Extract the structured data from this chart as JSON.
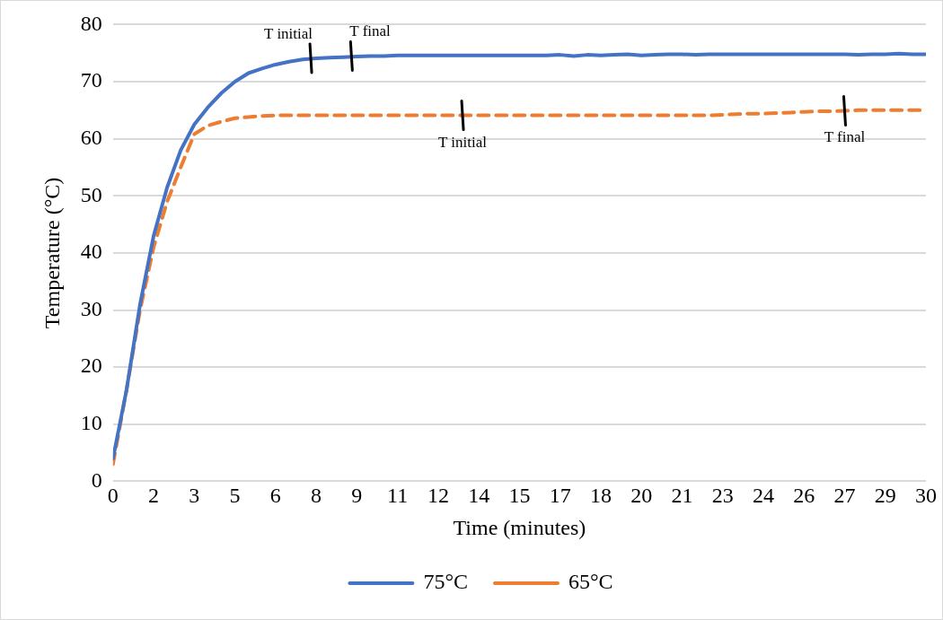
{
  "chart_data": {
    "type": "line",
    "xlabel": "Time (minutes)",
    "ylabel": "Temperature (°C)",
    "xlim": [
      0,
      30
    ],
    "xticks": [
      0,
      {
        "value": 1.5,
        "label": "2"
      },
      3,
      {
        "value": 4.5,
        "label": "5"
      },
      6,
      {
        "value": 7.5,
        "label": "8"
      },
      9,
      {
        "value": 10.5,
        "label": "11"
      },
      12,
      {
        "value": 13.5,
        "label": "14"
      },
      15,
      {
        "value": 16.5,
        "label": "17"
      },
      18,
      {
        "value": 19.5,
        "label": "20"
      },
      21,
      {
        "value": 22.5,
        "label": "23"
      },
      24,
      {
        "value": 25.5,
        "label": "26"
      },
      27,
      {
        "value": 28.5,
        "label": "29"
      },
      30
    ],
    "x": [
      0,
      0.5,
      1,
      1.5,
      2,
      2.5,
      3,
      3.5,
      4,
      4.5,
      5,
      5.5,
      6,
      6.5,
      7,
      7.5,
      8,
      8.5,
      9,
      9.5,
      10,
      10.5,
      11,
      11.5,
      12,
      12.5,
      13,
      13.5,
      14,
      14.5,
      15,
      15.5,
      16,
      16.5,
      17,
      17.5,
      18,
      18.5,
      19,
      19.5,
      20,
      20.5,
      21,
      21.5,
      22,
      22.5,
      23,
      23.5,
      24,
      24.5,
      25,
      25.5,
      26,
      26.5,
      27,
      27.5,
      28,
      28.5,
      29,
      29.5,
      30
    ],
    "ylim": [
      0,
      80
    ],
    "yticks": [
      0,
      10,
      20,
      30,
      40,
      50,
      60,
      70,
      80
    ],
    "grid": "y",
    "legend": "bottom",
    "series": [
      {
        "name": "75°C",
        "color": "#4472c4",
        "line_style": "solid",
        "values": [
          4,
          16,
          31,
          43,
          51.5,
          58,
          62.5,
          65.5,
          68,
          70,
          71.5,
          72.3,
          73,
          73.5,
          73.9,
          74.1,
          74.2,
          74.3,
          74.4,
          74.5,
          74.5,
          74.6,
          74.6,
          74.6,
          74.6,
          74.6,
          74.6,
          74.6,
          74.6,
          74.6,
          74.6,
          74.6,
          74.6,
          74.7,
          74.5,
          74.7,
          74.6,
          74.7,
          74.8,
          74.6,
          74.7,
          74.8,
          74.8,
          74.7,
          74.8,
          74.8,
          74.8,
          74.8,
          74.8,
          74.8,
          74.8,
          74.8,
          74.8,
          74.8,
          74.8,
          74.7,
          74.8,
          74.8,
          74.9,
          74.8,
          74.8
        ]
      },
      {
        "name": "65°C",
        "color": "#ed7d31",
        "line_style": "dashed",
        "values": [
          3,
          16,
          30,
          41,
          49,
          55,
          60.8,
          62.3,
          63,
          63.6,
          63.8,
          64,
          64.1,
          64.1,
          64.1,
          64.1,
          64.1,
          64.1,
          64.1,
          64.1,
          64.1,
          64.1,
          64.1,
          64.1,
          64.1,
          64.1,
          64.1,
          64.1,
          64.1,
          64.1,
          64.1,
          64.1,
          64.1,
          64.1,
          64.1,
          64.1,
          64.1,
          64.1,
          64.1,
          64.1,
          64.1,
          64.1,
          64.1,
          64.1,
          64.1,
          64.2,
          64.3,
          64.4,
          64.4,
          64.5,
          64.6,
          64.7,
          64.8,
          64.8,
          64.9,
          65,
          65,
          65,
          65,
          65,
          65
        ]
      }
    ],
    "annotations": [
      {
        "text": "T initial",
        "x": 7.3,
        "y": 74.1
      },
      {
        "text": "T final",
        "x": 8.8,
        "y": 74.5
      },
      {
        "text": "T initial",
        "x": 12.9,
        "y": 64.1
      },
      {
        "text": "T final",
        "x": 27,
        "y": 64.9
      }
    ]
  }
}
